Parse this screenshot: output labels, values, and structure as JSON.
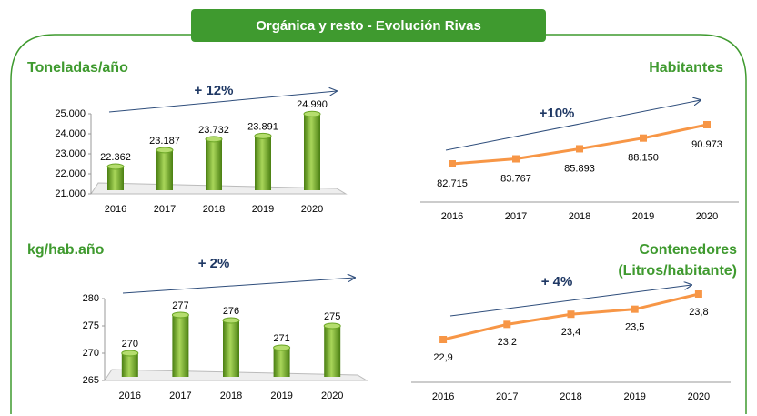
{
  "title": "Orgánica y resto - Evolución Rivas",
  "chart_data": [
    {
      "type": "bar",
      "title": "Toneladas/año",
      "annotation": "+ 12%",
      "categories": [
        "2016",
        "2017",
        "2018",
        "2019",
        "2020"
      ],
      "values": [
        22362,
        23187,
        23732,
        23891,
        24990
      ],
      "value_labels": [
        "22.362",
        "23.187",
        "23.732",
        "23.891",
        "24.990"
      ],
      "color": "#6aa524",
      "ylim": [
        21000,
        25000
      ],
      "yticks": [
        {
          "value": 21000,
          "label": "21.000"
        },
        {
          "value": 22000,
          "label": "22.000"
        },
        {
          "value": 23000,
          "label": "23.000"
        },
        {
          "value": 24000,
          "label": "24.000"
        },
        {
          "value": 25000,
          "label": "25.000"
        }
      ]
    },
    {
      "type": "line",
      "title": "Habitantes",
      "annotation": "+10%",
      "categories": [
        "2016",
        "2017",
        "2018",
        "2019",
        "2020"
      ],
      "values": [
        82715,
        83767,
        85893,
        88150,
        90973
      ],
      "value_labels": [
        "82.715",
        "83.767",
        "85.893",
        "88.150",
        "90.973"
      ],
      "color": "#f79646"
    },
    {
      "type": "bar",
      "title": "kg/hab.año",
      "annotation": "+ 2%",
      "categories": [
        "2016",
        "2017",
        "2018",
        "2019",
        "2020"
      ],
      "values": [
        270,
        277,
        276,
        271,
        275
      ],
      "color": "#6aa524",
      "ylim": [
        265,
        280
      ],
      "yticks": [
        265,
        270,
        275,
        280
      ]
    },
    {
      "type": "line",
      "title": [
        "Contenedores",
        "(Litros/habitante)"
      ],
      "annotation": "+ 4%",
      "categories": [
        "2016",
        "2017",
        "2018",
        "2019",
        "2020"
      ],
      "values": [
        22.9,
        23.2,
        23.4,
        23.5,
        23.8
      ],
      "value_labels": [
        "22,9",
        "23,2",
        "23,4",
        "23,5",
        "23,8"
      ],
      "color": "#f79646"
    }
  ]
}
